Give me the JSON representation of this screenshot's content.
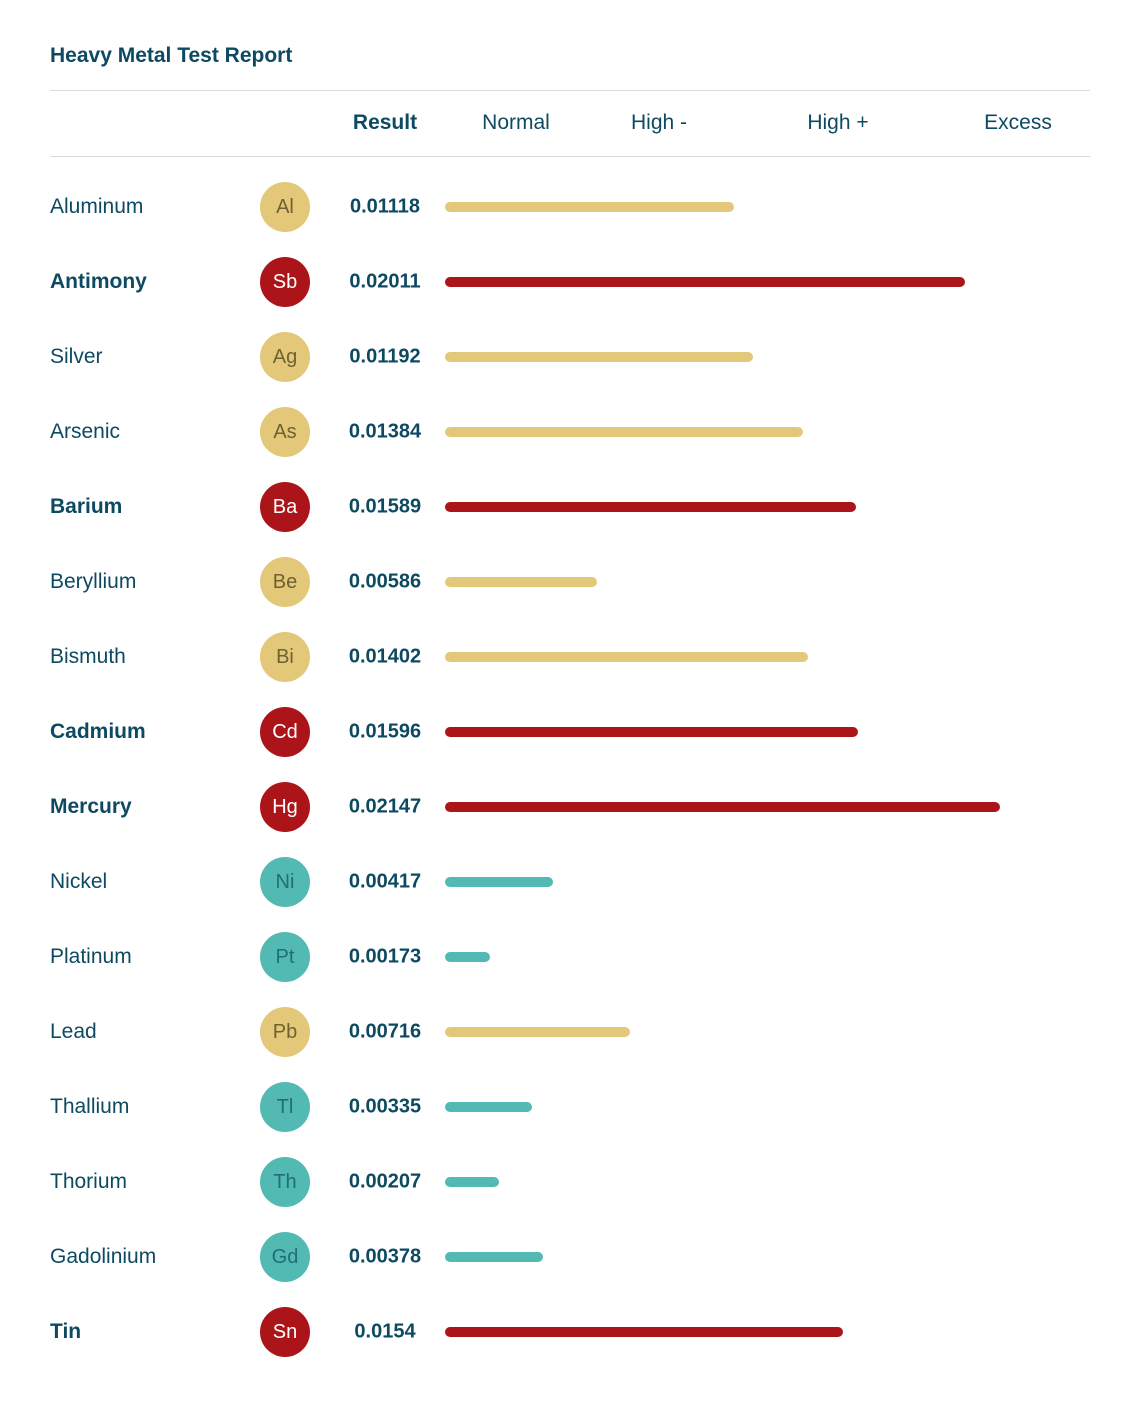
{
  "title": "Heavy Metal Test Report",
  "header": {
    "result_label": "Result",
    "bands": [
      "Normal",
      "High -",
      "High +",
      "Excess"
    ]
  },
  "colors": {
    "normal": "#52b9b3",
    "high": "#e2c878",
    "excess": "#ab1519",
    "badge_text_normal": "#1f6f73",
    "badge_text_high": "#6e6230",
    "badge_text_excess": "#ffffff"
  },
  "chart_data": {
    "type": "bar",
    "orientation": "horizontal",
    "title": "Heavy Metal Test Report",
    "xlabel": "",
    "ylabel": "",
    "xlim": [
      0,
      0.023
    ],
    "grid": false,
    "legend": "none",
    "rows": [
      {
        "name": "Aluminum",
        "symbol": "Al",
        "result": "0.01118",
        "value": 0.01118,
        "status": "high"
      },
      {
        "name": "Antimony",
        "symbol": "Sb",
        "result": "0.02011",
        "value": 0.02011,
        "status": "excess"
      },
      {
        "name": "Silver",
        "symbol": "Ag",
        "result": "0.01192",
        "value": 0.01192,
        "status": "high"
      },
      {
        "name": "Arsenic",
        "symbol": "As",
        "result": "0.01384",
        "value": 0.01384,
        "status": "high"
      },
      {
        "name": "Barium",
        "symbol": "Ba",
        "result": "0.01589",
        "value": 0.01589,
        "status": "excess"
      },
      {
        "name": "Beryllium",
        "symbol": "Be",
        "result": "0.00586",
        "value": 0.00586,
        "status": "high"
      },
      {
        "name": "Bismuth",
        "symbol": "Bi",
        "result": "0.01402",
        "value": 0.01402,
        "status": "high"
      },
      {
        "name": "Cadmium",
        "symbol": "Cd",
        "result": "0.01596",
        "value": 0.01596,
        "status": "excess"
      },
      {
        "name": "Mercury",
        "symbol": "Hg",
        "result": "0.02147",
        "value": 0.02147,
        "status": "excess"
      },
      {
        "name": "Nickel",
        "symbol": "Ni",
        "result": "0.00417",
        "value": 0.00417,
        "status": "normal"
      },
      {
        "name": "Platinum",
        "symbol": "Pt",
        "result": "0.00173",
        "value": 0.00173,
        "status": "normal"
      },
      {
        "name": "Lead",
        "symbol": "Pb",
        "result": "0.00716",
        "value": 0.00716,
        "status": "high"
      },
      {
        "name": "Thallium",
        "symbol": "Tl",
        "result": "0.00335",
        "value": 0.00335,
        "status": "normal"
      },
      {
        "name": "Thorium",
        "symbol": "Th",
        "result": "0.00207",
        "value": 0.00207,
        "status": "normal"
      },
      {
        "name": "Gadolinium",
        "symbol": "Gd",
        "result": "0.00378",
        "value": 0.00378,
        "status": "normal"
      },
      {
        "name": "Tin",
        "symbol": "Sn",
        "result": "0.0154",
        "value": 0.0154,
        "status": "excess"
      }
    ]
  }
}
